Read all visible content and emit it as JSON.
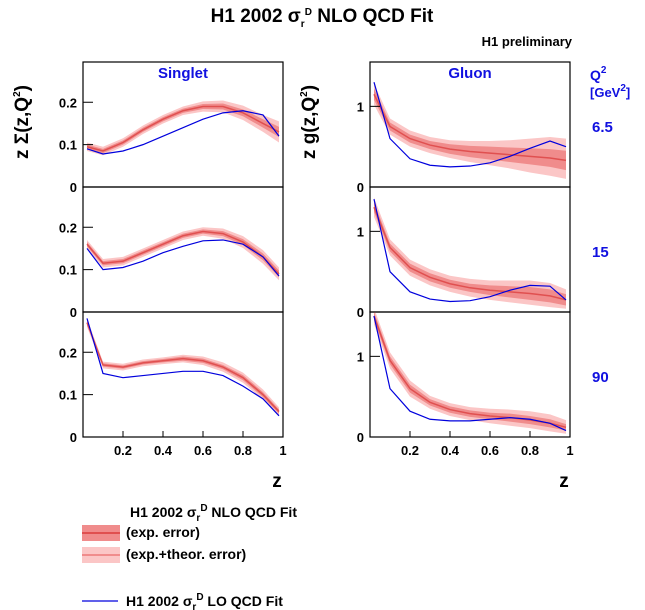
{
  "title": [
    "H1 2002 σ",
    "r",
    "D",
    " NLO QCD Fit"
  ],
  "subtitle": "H1 preliminary",
  "ylabels": [
    [
      "z Σ(z,Q",
      "2",
      ")"
    ],
    [
      "z g(z,Q",
      "2",
      ")"
    ]
  ],
  "q2_label": {
    "q": [
      "Q",
      "2"
    ],
    "unit": [
      "[GeV",
      "2",
      "]"
    ]
  },
  "q2_values": [
    6.5,
    15,
    90
  ],
  "colors": {
    "nlo": "#e05050",
    "exp": "#f08c8c",
    "tot": "#fbc6c6",
    "lo": "#0000dd",
    "text": "#1010e0"
  },
  "legend": {
    "title": [
      "H1 2002 σ",
      "r",
      "D",
      " NLO QCD Fit"
    ],
    "entries": [
      "(exp. error)",
      "(exp.+theor. error)"
    ],
    "lo": [
      "H1 2002 σ",
      "r",
      "D",
      " LO QCD Fit"
    ]
  },
  "chart_data": [
    {
      "type": "line",
      "title": "Singlet",
      "xlim": [
        0,
        1
      ],
      "ylim": [
        0,
        0.295
      ],
      "yticks": [
        0,
        0.1,
        0.2
      ],
      "x": [
        0.02,
        0.1,
        0.2,
        0.3,
        0.4,
        0.5,
        0.6,
        0.7,
        0.8,
        0.9,
        0.98
      ],
      "nlo": [
        0.095,
        0.085,
        0.105,
        0.135,
        0.16,
        0.18,
        0.19,
        0.19,
        0.175,
        0.15,
        0.13
      ],
      "exp_low": [
        0.09,
        0.08,
        0.1,
        0.13,
        0.155,
        0.175,
        0.184,
        0.183,
        0.167,
        0.14,
        0.118
      ],
      "exp_high": [
        0.1,
        0.09,
        0.11,
        0.14,
        0.165,
        0.185,
        0.196,
        0.197,
        0.183,
        0.16,
        0.142
      ],
      "tot_low": [
        0.085,
        0.075,
        0.095,
        0.125,
        0.15,
        0.17,
        0.178,
        0.176,
        0.158,
        0.13,
        0.105
      ],
      "tot_high": [
        0.105,
        0.095,
        0.115,
        0.145,
        0.17,
        0.19,
        0.202,
        0.204,
        0.192,
        0.17,
        0.155
      ],
      "lo": [
        0.09,
        0.078,
        0.085,
        0.1,
        0.12,
        0.14,
        0.16,
        0.175,
        0.18,
        0.17,
        0.12
      ]
    },
    {
      "type": "line",
      "title": "Gluon",
      "xlim": [
        0,
        1
      ],
      "ylim": [
        0,
        1.55
      ],
      "yticks": [
        0,
        1
      ],
      "x": [
        0.02,
        0.1,
        0.2,
        0.3,
        0.4,
        0.5,
        0.6,
        0.7,
        0.8,
        0.9,
        0.98
      ],
      "nlo": [
        1.15,
        0.75,
        0.6,
        0.52,
        0.47,
        0.44,
        0.42,
        0.4,
        0.38,
        0.36,
        0.33
      ],
      "exp_low": [
        1.08,
        0.7,
        0.55,
        0.47,
        0.41,
        0.37,
        0.34,
        0.31,
        0.28,
        0.25,
        0.21
      ],
      "exp_high": [
        1.22,
        0.8,
        0.65,
        0.57,
        0.53,
        0.51,
        0.5,
        0.49,
        0.48,
        0.47,
        0.45
      ],
      "tot_low": [
        1.02,
        0.65,
        0.5,
        0.42,
        0.36,
        0.31,
        0.27,
        0.23,
        0.18,
        0.14,
        0.1
      ],
      "tot_high": [
        1.28,
        0.85,
        0.7,
        0.62,
        0.58,
        0.57,
        0.57,
        0.58,
        0.6,
        0.62,
        0.6
      ],
      "lo": [
        1.3,
        0.6,
        0.35,
        0.27,
        0.25,
        0.26,
        0.3,
        0.38,
        0.48,
        0.57,
        0.5
      ]
    },
    {
      "type": "line",
      "xlim": [
        0,
        1
      ],
      "ylim": [
        0,
        0.295
      ],
      "yticks": [
        0,
        0.1,
        0.2
      ],
      "x": [
        0.02,
        0.1,
        0.2,
        0.3,
        0.4,
        0.5,
        0.6,
        0.7,
        0.8,
        0.9,
        0.98
      ],
      "nlo": [
        0.16,
        0.115,
        0.12,
        0.14,
        0.16,
        0.18,
        0.19,
        0.185,
        0.165,
        0.13,
        0.09
      ],
      "exp_low": [
        0.155,
        0.11,
        0.115,
        0.135,
        0.155,
        0.175,
        0.185,
        0.179,
        0.158,
        0.122,
        0.082
      ],
      "exp_high": [
        0.165,
        0.12,
        0.125,
        0.145,
        0.165,
        0.185,
        0.195,
        0.191,
        0.172,
        0.138,
        0.098
      ],
      "tot_low": [
        0.15,
        0.105,
        0.11,
        0.13,
        0.15,
        0.17,
        0.18,
        0.173,
        0.151,
        0.114,
        0.075
      ],
      "tot_high": [
        0.17,
        0.125,
        0.13,
        0.15,
        0.17,
        0.19,
        0.2,
        0.197,
        0.179,
        0.146,
        0.105
      ],
      "lo": [
        0.15,
        0.1,
        0.105,
        0.12,
        0.14,
        0.155,
        0.168,
        0.17,
        0.16,
        0.13,
        0.085
      ]
    },
    {
      "type": "line",
      "xlim": [
        0,
        1
      ],
      "ylim": [
        0,
        1.55
      ],
      "yticks": [
        0,
        1
      ],
      "x": [
        0.02,
        0.1,
        0.2,
        0.3,
        0.4,
        0.5,
        0.6,
        0.7,
        0.8,
        0.9,
        0.98
      ],
      "nlo": [
        1.3,
        0.8,
        0.55,
        0.43,
        0.35,
        0.3,
        0.27,
        0.25,
        0.23,
        0.2,
        0.15
      ],
      "exp_low": [
        1.24,
        0.75,
        0.5,
        0.38,
        0.3,
        0.25,
        0.21,
        0.18,
        0.15,
        0.12,
        0.08
      ],
      "exp_high": [
        1.36,
        0.85,
        0.6,
        0.48,
        0.4,
        0.35,
        0.33,
        0.32,
        0.31,
        0.28,
        0.22
      ],
      "tot_low": [
        1.18,
        0.7,
        0.45,
        0.33,
        0.25,
        0.19,
        0.15,
        0.12,
        0.09,
        0.06,
        0.04
      ],
      "tot_high": [
        1.42,
        0.9,
        0.65,
        0.53,
        0.45,
        0.41,
        0.39,
        0.39,
        0.39,
        0.36,
        0.28
      ],
      "lo": [
        1.4,
        0.5,
        0.25,
        0.16,
        0.13,
        0.14,
        0.19,
        0.27,
        0.33,
        0.32,
        0.15
      ]
    },
    {
      "type": "line",
      "xlabel": "z",
      "xlim": [
        0,
        1
      ],
      "ylim": [
        0,
        0.295
      ],
      "yticks": [
        0,
        0.1,
        0.2
      ],
      "xticks": [
        0.2,
        0.4,
        0.6,
        0.8,
        1
      ],
      "x": [
        0.02,
        0.1,
        0.2,
        0.3,
        0.4,
        0.5,
        0.6,
        0.7,
        0.8,
        0.9,
        0.98
      ],
      "nlo": [
        0.27,
        0.17,
        0.165,
        0.175,
        0.18,
        0.185,
        0.18,
        0.165,
        0.14,
        0.1,
        0.06
      ],
      "exp_low": [
        0.265,
        0.166,
        0.161,
        0.171,
        0.176,
        0.18,
        0.175,
        0.16,
        0.134,
        0.094,
        0.055
      ],
      "exp_high": [
        0.275,
        0.174,
        0.169,
        0.179,
        0.184,
        0.19,
        0.185,
        0.17,
        0.146,
        0.106,
        0.065
      ],
      "tot_low": [
        0.26,
        0.162,
        0.157,
        0.167,
        0.172,
        0.176,
        0.17,
        0.154,
        0.128,
        0.088,
        0.05
      ],
      "tot_high": [
        0.28,
        0.178,
        0.173,
        0.183,
        0.188,
        0.194,
        0.19,
        0.176,
        0.152,
        0.112,
        0.07
      ],
      "lo": [
        0.28,
        0.15,
        0.14,
        0.145,
        0.15,
        0.155,
        0.155,
        0.145,
        0.12,
        0.09,
        0.05
      ]
    },
    {
      "type": "line",
      "xlabel": "z",
      "xlim": [
        0,
        1
      ],
      "ylim": [
        0,
        1.55
      ],
      "yticks": [
        0,
        1
      ],
      "xticks": [
        0.2,
        0.4,
        0.6,
        0.8,
        1
      ],
      "x": [
        0.02,
        0.1,
        0.2,
        0.3,
        0.4,
        0.5,
        0.6,
        0.7,
        0.8,
        0.9,
        0.98
      ],
      "nlo": [
        1.5,
        0.95,
        0.6,
        0.43,
        0.34,
        0.29,
        0.26,
        0.24,
        0.21,
        0.17,
        0.12
      ],
      "exp_low": [
        1.45,
        0.9,
        0.55,
        0.39,
        0.3,
        0.25,
        0.22,
        0.19,
        0.16,
        0.12,
        0.08
      ],
      "exp_high": [
        1.55,
        1.0,
        0.65,
        0.47,
        0.38,
        0.33,
        0.3,
        0.29,
        0.26,
        0.22,
        0.16
      ],
      "tot_low": [
        1.4,
        0.85,
        0.5,
        0.35,
        0.26,
        0.21,
        0.17,
        0.14,
        0.11,
        0.07,
        0.04
      ],
      "tot_high": [
        1.6,
        1.05,
        0.7,
        0.51,
        0.42,
        0.37,
        0.35,
        0.34,
        0.32,
        0.28,
        0.21
      ],
      "lo": [
        1.5,
        0.6,
        0.32,
        0.22,
        0.2,
        0.2,
        0.22,
        0.24,
        0.22,
        0.17,
        0.08
      ]
    }
  ]
}
